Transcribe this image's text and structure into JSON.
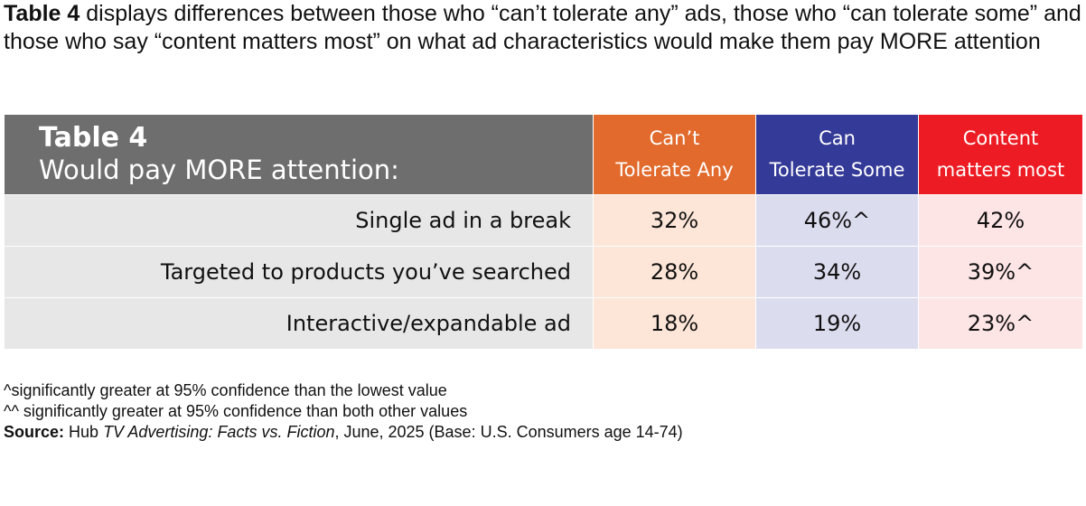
{
  "intro": {
    "lead_bold": "Table 4",
    "text": " displays differences between those who “can’t tolerate any” ads, those who “can tolerate some” and those who say “content matters most” on what ad characteristics would make them pay MORE attention"
  },
  "table": {
    "title": "Table 4",
    "subtitle": "Would pay MORE attention:",
    "columns": [
      {
        "line1": "Can’t",
        "line2": "Tolerate Any",
        "color": "#e16a2c",
        "tint": "#fde5d7"
      },
      {
        "line1": "Can",
        "line2": "Tolerate Some",
        "color": "#343a97",
        "tint": "#dcdcef"
      },
      {
        "line1": "Content",
        "line2": "matters most",
        "color": "#ed1c24",
        "tint": "#fde4e5"
      }
    ],
    "rows": [
      {
        "label": "Single ad in a break",
        "values": [
          "32%",
          "46%^",
          "42%"
        ]
      },
      {
        "label": "Targeted to products you’ve searched",
        "values": [
          "28%",
          "34%",
          "39%^"
        ]
      },
      {
        "label": "Interactive/expandable ad",
        "values": [
          "18%",
          "19%",
          "23%^"
        ]
      }
    ]
  },
  "footnotes": {
    "note1": "^significantly greater at 95% confidence than the lowest value",
    "note2": "^^ significantly greater at 95% confidence than both other values",
    "source_label": "Source:",
    "source_pre": " Hub ",
    "source_title": "TV Advertising: Facts vs. Fiction",
    "source_post": ", June, 2025 (Base: U.S. Consumers age 14-74)"
  }
}
